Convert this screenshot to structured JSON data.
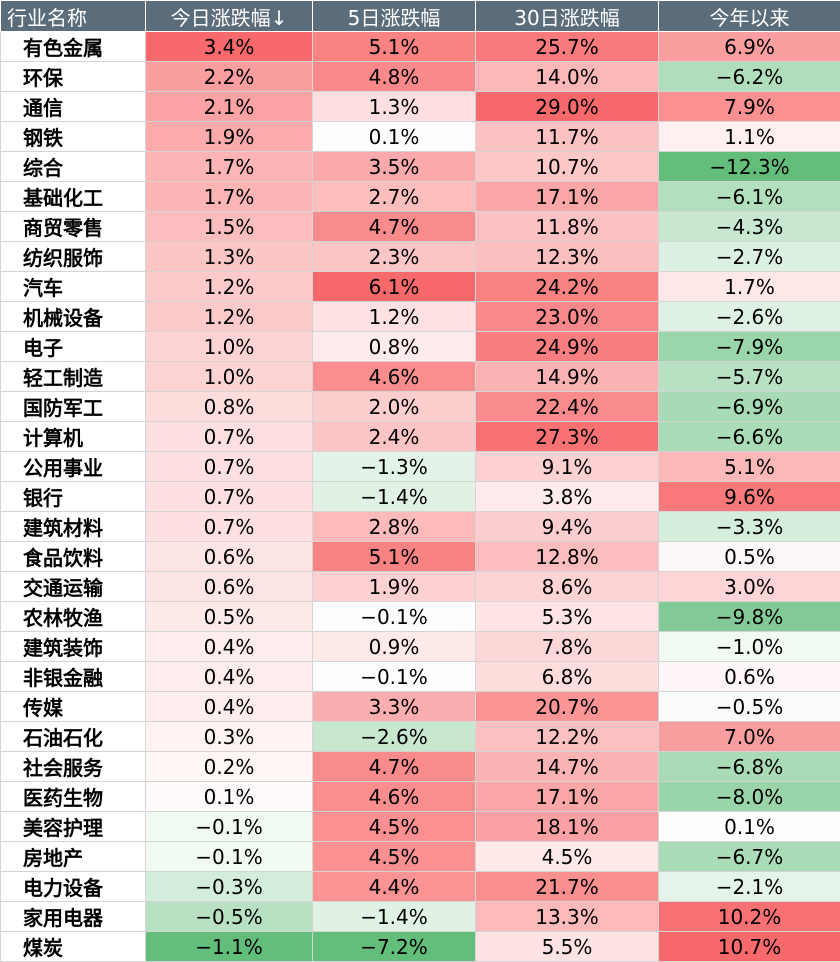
{
  "chart_data": {
    "type": "table",
    "columns": [
      "行业名称",
      "今日涨跌幅↓",
      "5日涨跌幅",
      "30日涨跌幅",
      "今年以来"
    ],
    "sort_column": "今日涨跌幅",
    "sort_order": "descending",
    "colors": {
      "positive": "#f8696b",
      "negative": "#63be7b",
      "neutral": "#ffffff",
      "header_bg": "#5b6c7a",
      "header_text": "#ffffff"
    },
    "rows": [
      {
        "industry": "有色金属",
        "today": "3.4%",
        "d5": "5.1%",
        "d30": "25.7%",
        "ytd": "6.9%"
      },
      {
        "industry": "环保",
        "today": "2.2%",
        "d5": "4.8%",
        "d30": "14.0%",
        "ytd": "−6.2%"
      },
      {
        "industry": "通信",
        "today": "2.1%",
        "d5": "1.3%",
        "d30": "29.0%",
        "ytd": "7.9%"
      },
      {
        "industry": "钢铁",
        "today": "1.9%",
        "d5": "0.1%",
        "d30": "11.7%",
        "ytd": "1.1%"
      },
      {
        "industry": "综合",
        "today": "1.7%",
        "d5": "3.5%",
        "d30": "10.7%",
        "ytd": "−12.3%"
      },
      {
        "industry": "基础化工",
        "today": "1.7%",
        "d5": "2.7%",
        "d30": "17.1%",
        "ytd": "−6.1%"
      },
      {
        "industry": "商贸零售",
        "today": "1.5%",
        "d5": "4.7%",
        "d30": "11.8%",
        "ytd": "−4.3%"
      },
      {
        "industry": "纺织服饰",
        "today": "1.3%",
        "d5": "2.3%",
        "d30": "12.3%",
        "ytd": "−2.7%"
      },
      {
        "industry": "汽车",
        "today": "1.2%",
        "d5": "6.1%",
        "d30": "24.2%",
        "ytd": "1.7%"
      },
      {
        "industry": "机械设备",
        "today": "1.2%",
        "d5": "1.2%",
        "d30": "23.0%",
        "ytd": "−2.6%"
      },
      {
        "industry": "电子",
        "today": "1.0%",
        "d5": "0.8%",
        "d30": "24.9%",
        "ytd": "−7.9%"
      },
      {
        "industry": "轻工制造",
        "today": "1.0%",
        "d5": "4.6%",
        "d30": "14.9%",
        "ytd": "−5.7%"
      },
      {
        "industry": "国防军工",
        "today": "0.8%",
        "d5": "2.0%",
        "d30": "22.4%",
        "ytd": "−6.9%"
      },
      {
        "industry": "计算机",
        "today": "0.7%",
        "d5": "2.4%",
        "d30": "27.3%",
        "ytd": "−6.6%"
      },
      {
        "industry": "公用事业",
        "today": "0.7%",
        "d5": "−1.3%",
        "d30": "9.1%",
        "ytd": "5.1%"
      },
      {
        "industry": "银行",
        "today": "0.7%",
        "d5": "−1.4%",
        "d30": "3.8%",
        "ytd": "9.6%"
      },
      {
        "industry": "建筑材料",
        "today": "0.7%",
        "d5": "2.8%",
        "d30": "9.4%",
        "ytd": "−3.3%"
      },
      {
        "industry": "食品饮料",
        "today": "0.6%",
        "d5": "5.1%",
        "d30": "12.8%",
        "ytd": "0.5%"
      },
      {
        "industry": "交通运输",
        "today": "0.6%",
        "d5": "1.9%",
        "d30": "8.6%",
        "ytd": "3.0%"
      },
      {
        "industry": "农林牧渔",
        "today": "0.5%",
        "d5": "−0.1%",
        "d30": "5.3%",
        "ytd": "−9.8%"
      },
      {
        "industry": "建筑装饰",
        "today": "0.4%",
        "d5": "0.9%",
        "d30": "7.8%",
        "ytd": "−1.0%"
      },
      {
        "industry": "非银金融",
        "today": "0.4%",
        "d5": "−0.1%",
        "d30": "6.8%",
        "ytd": "0.6%"
      },
      {
        "industry": "传媒",
        "today": "0.4%",
        "d5": "3.3%",
        "d30": "20.7%",
        "ytd": "−0.5%"
      },
      {
        "industry": "石油石化",
        "today": "0.3%",
        "d5": "−2.6%",
        "d30": "12.2%",
        "ytd": "7.0%"
      },
      {
        "industry": "社会服务",
        "today": "0.2%",
        "d5": "4.7%",
        "d30": "14.7%",
        "ytd": "−6.8%"
      },
      {
        "industry": "医药生物",
        "today": "0.1%",
        "d5": "4.6%",
        "d30": "17.1%",
        "ytd": "−8.0%"
      },
      {
        "industry": "美容护理",
        "today": "−0.1%",
        "d5": "4.5%",
        "d30": "18.1%",
        "ytd": "0.1%"
      },
      {
        "industry": "房地产",
        "today": "−0.1%",
        "d5": "4.5%",
        "d30": "4.5%",
        "ytd": "−6.7%"
      },
      {
        "industry": "电力设备",
        "today": "−0.3%",
        "d5": "4.4%",
        "d30": "21.7%",
        "ytd": "−2.1%"
      },
      {
        "industry": "家用电器",
        "today": "−0.5%",
        "d5": "−1.4%",
        "d30": "13.3%",
        "ytd": "10.2%"
      },
      {
        "industry": "煤炭",
        "today": "−1.1%",
        "d5": "−7.2%",
        "d30": "5.5%",
        "ytd": "10.7%"
      }
    ]
  }
}
